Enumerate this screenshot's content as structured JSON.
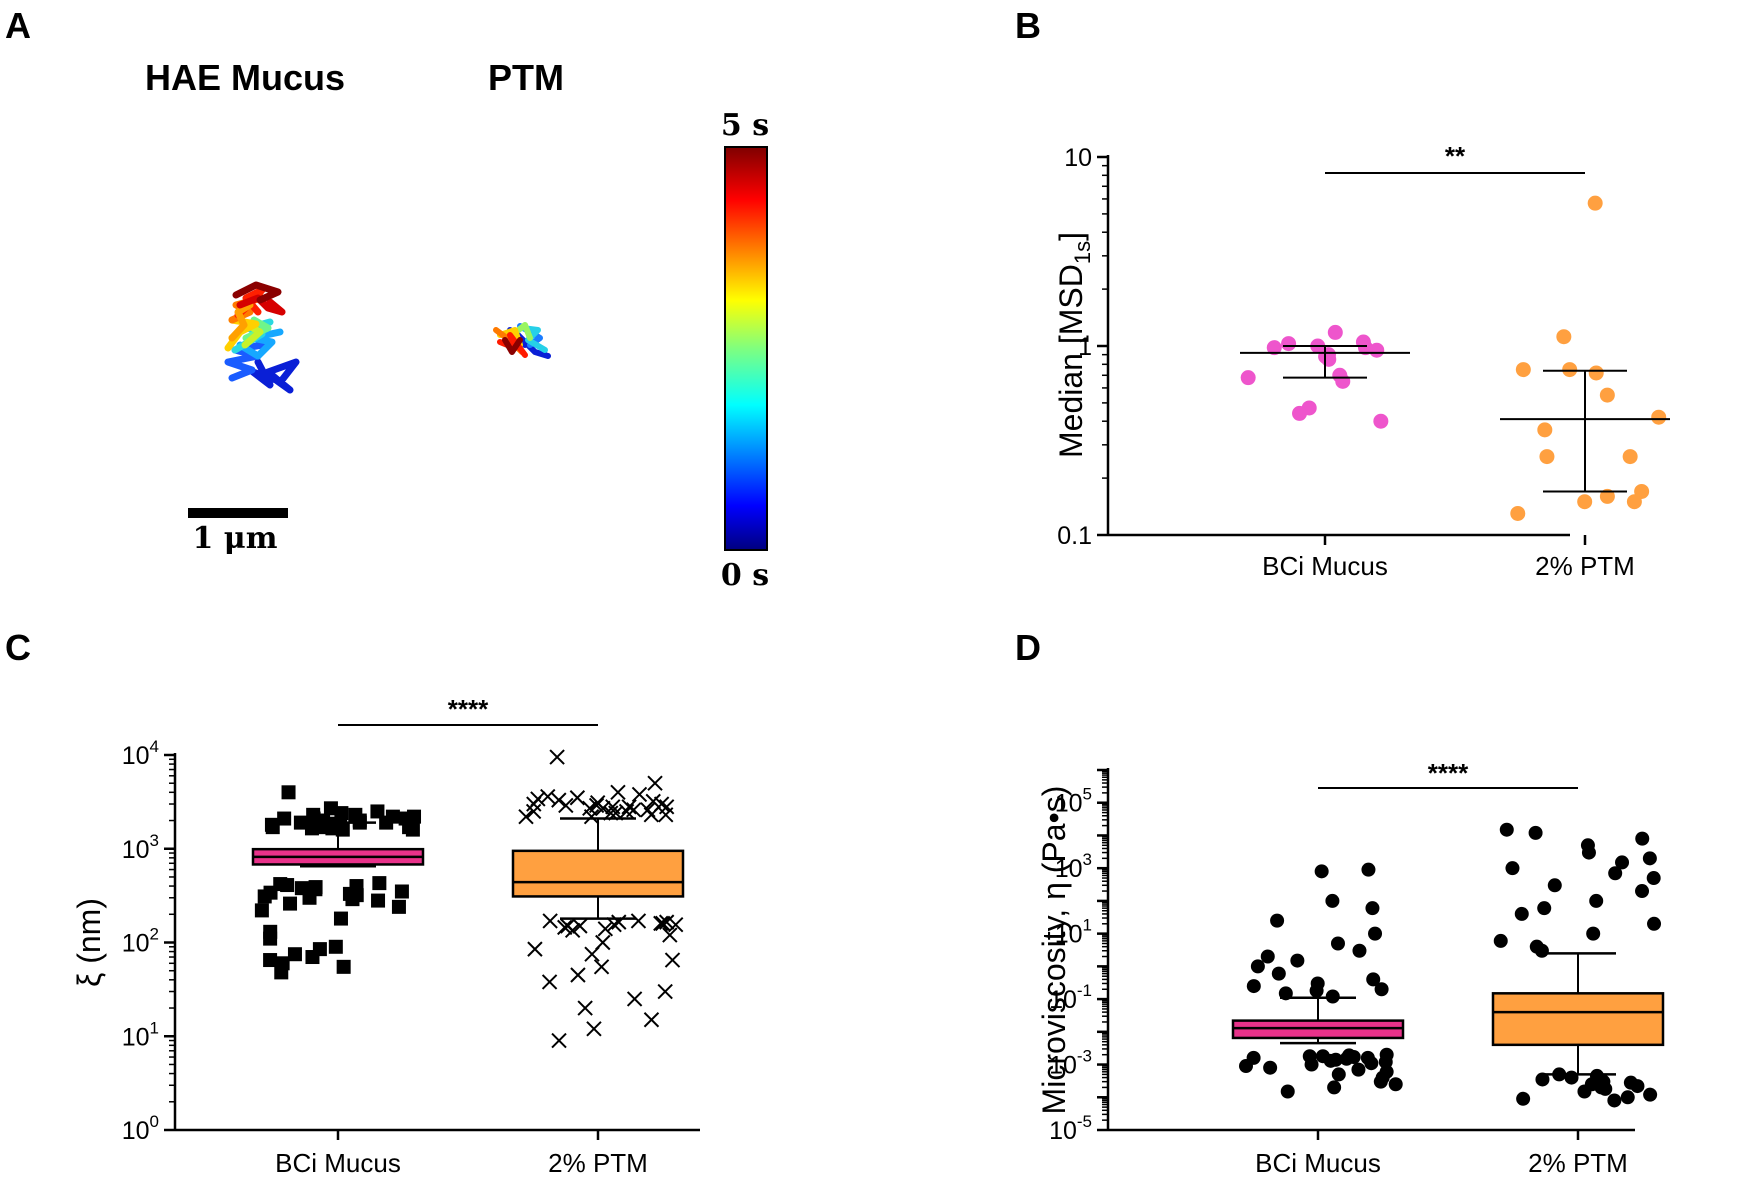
{
  "colors": {
    "pink": "#ee55cc",
    "orange": "#ffa040",
    "box_pink": "#e8328a",
    "box_orange": "#ffa040",
    "black": "#000000"
  },
  "panel_a": {
    "letter": "A",
    "title_left": "HAE Mucus",
    "title_right": "PTM",
    "colorbar_top": "5 s",
    "colorbar_bottom": "0 s",
    "colorbar_colormap": "jet",
    "scalebar_label": "1 μm"
  },
  "panel_b": {
    "letter": "B",
    "ylabel_main": "Median [MSD",
    "ylabel_sub": "1s",
    "ylabel_end": "]"
  },
  "panel_c": {
    "letter": "C"
  },
  "panel_d": {
    "letter": "D"
  },
  "chart_data": [
    {
      "id": "B",
      "type": "scatter",
      "title": "",
      "xlabel": "",
      "ylabel": "Median [MSD1s]",
      "yscale": "log",
      "ylim": [
        0.1,
        10
      ],
      "yticks": [
        "0.1",
        "1",
        "10"
      ],
      "categories": [
        "BCi Mucus",
        "2% PTM"
      ],
      "series": [
        {
          "category": "BCi Mucus",
          "color": "#ee55cc",
          "values": [
            0.98,
            1.05,
            1.18,
            1.0,
            1.03,
            0.95,
            0.98,
            0.88,
            0.85,
            0.9,
            0.68,
            0.7,
            0.65,
            0.47,
            0.4,
            0.44
          ],
          "median": 0.92,
          "iqr": [
            0.68,
            1.0
          ]
        },
        {
          "category": "2% PTM",
          "color": "#ffa040",
          "values": [
            5.7,
            1.12,
            0.75,
            0.72,
            0.75,
            0.55,
            0.42,
            0.36,
            0.26,
            0.26,
            0.17,
            0.16,
            0.13,
            0.15,
            0.15
          ],
          "median": 0.41,
          "iqr": [
            0.17,
            0.74
          ]
        }
      ],
      "significance": "**"
    },
    {
      "id": "C",
      "type": "box",
      "title": "",
      "xlabel": "",
      "ylabel": "ξ (nm)",
      "yscale": "log",
      "ylim": [
        1,
        10000
      ],
      "yticks": [
        {
          "base": "10",
          "exp": "0"
        },
        {
          "base": "10",
          "exp": "1"
        },
        {
          "base": "10",
          "exp": "2"
        },
        {
          "base": "10",
          "exp": "3"
        },
        {
          "base": "10",
          "exp": "4"
        }
      ],
      "categories": [
        "BCi Mucus",
        "2% PTM"
      ],
      "series": [
        {
          "category": "BCi Mucus",
          "fill": "#e8328a",
          "marker": "square",
          "whisker_low": 650,
          "q1": 680,
          "median": 820,
          "q3": 990,
          "whisker_high": 1900,
          "outliers": [
            4000,
            2700,
            2500,
            2400,
            2300,
            2300,
            2200,
            2200,
            2100,
            2100,
            2100,
            2000,
            2000,
            1900,
            1900,
            1900,
            1850,
            1800,
            1800,
            1750,
            1750,
            1700,
            1700,
            1700,
            1650,
            1650,
            1600,
            1600,
            430,
            420,
            410,
            400,
            390,
            380,
            370,
            350,
            340,
            330,
            320,
            310,
            300,
            290,
            280,
            260,
            240,
            220,
            180,
            130,
            110,
            90,
            85,
            75,
            70,
            65,
            60,
            55,
            48
          ]
        },
        {
          "category": "2% PTM",
          "fill": "#ffa040",
          "marker": "cross",
          "whisker_low": 180,
          "q1": 310,
          "median": 440,
          "q3": 950,
          "whisker_high": 2100,
          "outliers": [
            9500,
            5000,
            4000,
            3800,
            3600,
            3500,
            3400,
            3300,
            3200,
            3100,
            3000,
            3000,
            2900,
            2900,
            2800,
            2800,
            2800,
            2700,
            2700,
            2600,
            2600,
            2500,
            2500,
            2400,
            2400,
            2300,
            2300,
            2200,
            2200,
            170,
            170,
            165,
            165,
            160,
            160,
            155,
            155,
            150,
            150,
            145,
            140,
            135,
            120,
            100,
            85,
            75,
            65,
            55,
            45,
            38,
            30,
            25,
            20,
            15,
            12,
            9
          ]
        }
      ],
      "significance": "****"
    },
    {
      "id": "D",
      "type": "box",
      "title": "",
      "xlabel": "",
      "ylabel": "Microviscosity, η (Pa•s)",
      "yscale": "log",
      "ylim": [
        1e-05,
        1000000
      ],
      "yticks": [
        {
          "base": "10",
          "exp": "-5"
        },
        {
          "base": "10",
          "exp": "-3"
        },
        {
          "base": "10",
          "exp": "-1"
        },
        {
          "base": "10",
          "exp": "1"
        },
        {
          "base": "10",
          "exp": "3"
        },
        {
          "base": "10",
          "exp": "5"
        }
      ],
      "categories": [
        "BCi Mucus",
        "2% PTM"
      ],
      "series": [
        {
          "category": "BCi Mucus",
          "fill": "#e8328a",
          "marker": "circle",
          "whisker_low": 0.0045,
          "q1": 0.0065,
          "median": 0.013,
          "q3": 0.022,
          "whisker_high": 0.11,
          "outliers": [
            900,
            800,
            100,
            60,
            25,
            10,
            5,
            3,
            2,
            1.5,
            1,
            0.6,
            0.4,
            0.3,
            0.25,
            0.2,
            0.18,
            0.15,
            0.12,
            0.002,
            0.0019,
            0.0018,
            0.0018,
            0.0017,
            0.0016,
            0.0016,
            0.0015,
            0.0014,
            0.0013,
            0.0012,
            0.0011,
            0.001,
            0.0009,
            0.0008,
            0.0007,
            0.0006,
            0.0005,
            0.0004,
            0.0003,
            0.00025,
            0.0002,
            0.00015
          ]
        },
        {
          "category": "2% PTM",
          "fill": "#ffa040",
          "marker": "circle",
          "whisker_low": 0.0005,
          "q1": 0.004,
          "median": 0.04,
          "q3": 0.15,
          "whisker_high": 2.5,
          "outliers": [
            15000,
            12000,
            8000,
            5000,
            3000,
            2000,
            1500,
            1000,
            700,
            500,
            300,
            200,
            100,
            60,
            40,
            20,
            10,
            6,
            4,
            3,
            0.0005,
            0.00045,
            0.0004,
            0.00035,
            0.0003,
            0.00028,
            0.00025,
            0.00022,
            0.0002,
            0.00018,
            0.00015,
            0.00012,
            0.0001,
            9e-05,
            8e-05
          ]
        }
      ],
      "significance": "****"
    }
  ]
}
